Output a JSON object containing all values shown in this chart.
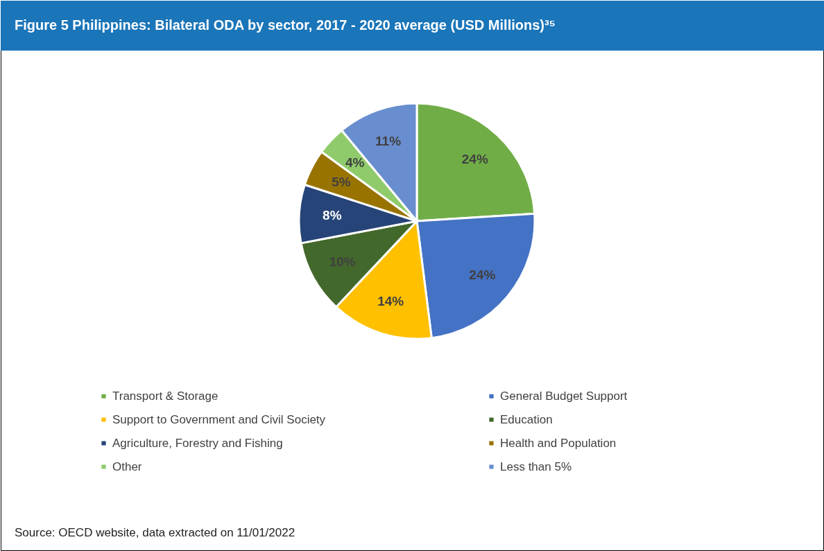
{
  "chart_data": {
    "type": "pie",
    "title": "Figure 5 Philippines: Bilateral ODA by sector, 2017 - 2020 average (USD Millions)³⁵",
    "categories": [
      "Transport & Storage",
      "General Budget Support",
      "Support to Government and Civil Society",
      "Education",
      "Agriculture, Forestry and Fishing",
      "Health and Population",
      "Other",
      "Less than 5%"
    ],
    "values": [
      24,
      24,
      14,
      10,
      8,
      5,
      4,
      11
    ],
    "colors": [
      "#70ad47",
      "#4472c4",
      "#ffc000",
      "#43682b",
      "#264478",
      "#997300",
      "#8fcb6b",
      "#698ed0"
    ],
    "value_labels": [
      "24%",
      "24%",
      "14%",
      "10%",
      "8%",
      "5%",
      "4%",
      "11%"
    ],
    "legend": "bottom",
    "annotations": [
      "Source: OECD website, data extracted on 11/01/2022"
    ]
  }
}
